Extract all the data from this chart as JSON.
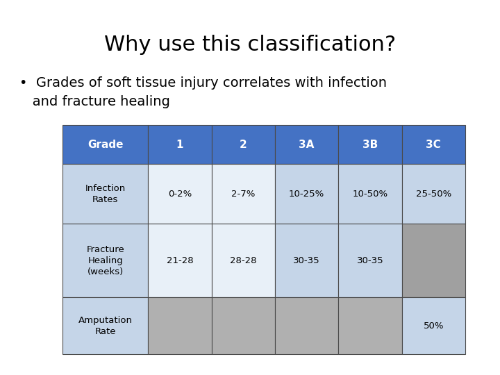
{
  "title": "Why use this classification?",
  "bullet_text": "Grades of soft tissue injury correlates with infection\nand fracture healing",
  "background_color": "#ffffff",
  "title_fontsize": 22,
  "bullet_fontsize": 14,
  "table_header_bg": "#4472C4",
  "table_header_text": "#ffffff",
  "table_light_bg": "#c5d5e8",
  "table_white_bg": "#e8f0f8",
  "table_gray_bg": "#a0a0a0",
  "table_border": "#4472C4",
  "col_headers": [
    "Grade",
    "1",
    "2",
    "3A",
    "3B",
    "3C"
  ],
  "rows": [
    {
      "label": "Infection\nRates",
      "values": [
        "0-2%",
        "2-7%",
        "10-25%",
        "10-50%",
        "25-50%"
      ],
      "label_bg": "#c5d5e8",
      "value_bgs": [
        "#e8f0f8",
        "#e8f0f8",
        "#c5d5e8",
        "#c5d5e8",
        "#c5d5e8"
      ]
    },
    {
      "label": "Fracture\nHealing\n(weeks)",
      "values": [
        "21-28",
        "28-28",
        "30-35",
        "30-35",
        ""
      ],
      "label_bg": "#c5d5e8",
      "value_bgs": [
        "#e8f0f8",
        "#e8f0f8",
        "#c5d5e8",
        "#c5d5e8",
        "#a0a0a0"
      ]
    },
    {
      "label": "Amputation\nRate",
      "values": [
        "",
        "",
        "",
        "",
        "50%"
      ],
      "label_bg": "#c5d5e8",
      "value_bgs": [
        "#b0b0b0",
        "#b0b0b0",
        "#b0b0b0",
        "#b0b0b0",
        "#c5d5e8"
      ]
    }
  ]
}
